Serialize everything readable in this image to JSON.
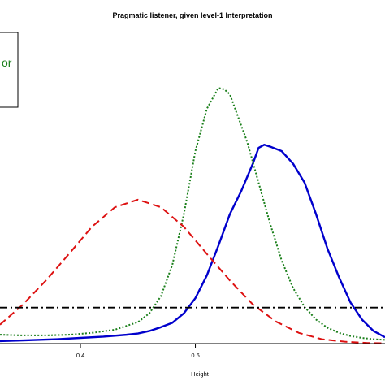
{
  "chart_data": {
    "type": "line",
    "title": "Pragmatic listener, given level-1 Interpretation",
    "xlabel": "Height",
    "ylabel": "",
    "xlim": [
      0.26,
      0.93
    ],
    "ylim": [
      0,
      4.8
    ],
    "x_ticks": [
      0.4,
      0.6
    ],
    "x_tick_labels": [
      "0.4",
      "0.6"
    ],
    "grid": false,
    "legend": {
      "position": "top-left",
      "visible_text": "or",
      "visible_text_color": "#1a7f1a"
    },
    "series": [
      {
        "color": "#0000cc",
        "style": "solid",
        "x": [
          0.26,
          0.3,
          0.33,
          0.36,
          0.4,
          0.44,
          0.48,
          0.5,
          0.52,
          0.54,
          0.56,
          0.58,
          0.6,
          0.62,
          0.64,
          0.66,
          0.68,
          0.7,
          0.71,
          0.72,
          0.73,
          0.75,
          0.77,
          0.79,
          0.81,
          0.83,
          0.85,
          0.87,
          0.89,
          0.91,
          0.93
        ],
        "y": [
          0.04,
          0.05,
          0.06,
          0.07,
          0.09,
          0.11,
          0.14,
          0.16,
          0.2,
          0.26,
          0.33,
          0.48,
          0.72,
          1.08,
          1.55,
          2.05,
          2.42,
          2.85,
          3.1,
          3.15,
          3.12,
          3.05,
          2.85,
          2.55,
          2.05,
          1.5,
          1.05,
          0.65,
          0.38,
          0.2,
          0.1
        ]
      },
      {
        "color": "#1a7f1a",
        "style": "dotted",
        "x": [
          0.26,
          0.3,
          0.34,
          0.38,
          0.42,
          0.46,
          0.5,
          0.52,
          0.54,
          0.56,
          0.58,
          0.6,
          0.62,
          0.64,
          0.65,
          0.66,
          0.67,
          0.69,
          0.71,
          0.73,
          0.75,
          0.77,
          0.79,
          0.81,
          0.83,
          0.85,
          0.87,
          0.89,
          0.91,
          0.93
        ],
        "y": [
          0.14,
          0.13,
          0.13,
          0.14,
          0.17,
          0.22,
          0.34,
          0.48,
          0.75,
          1.25,
          2.05,
          3.05,
          3.72,
          4.05,
          4.03,
          3.95,
          3.7,
          3.2,
          2.55,
          1.9,
          1.32,
          0.88,
          0.58,
          0.38,
          0.25,
          0.17,
          0.12,
          0.09,
          0.07,
          0.06
        ]
      },
      {
        "color": "#dd1111",
        "style": "dashed",
        "x": [
          0.26,
          0.3,
          0.34,
          0.38,
          0.42,
          0.46,
          0.5,
          0.54,
          0.58,
          0.62,
          0.66,
          0.7,
          0.74,
          0.78,
          0.82,
          0.86,
          0.9,
          0.93
        ],
        "y": [
          0.3,
          0.62,
          1.0,
          1.42,
          1.85,
          2.16,
          2.28,
          2.16,
          1.85,
          1.42,
          1.0,
          0.62,
          0.35,
          0.17,
          0.07,
          0.03,
          0.01,
          0.005
        ]
      },
      {
        "color": "#000000",
        "style": "dashdot",
        "x": [
          0.26,
          0.93
        ],
        "y": [
          0.57,
          0.57
        ]
      }
    ]
  }
}
